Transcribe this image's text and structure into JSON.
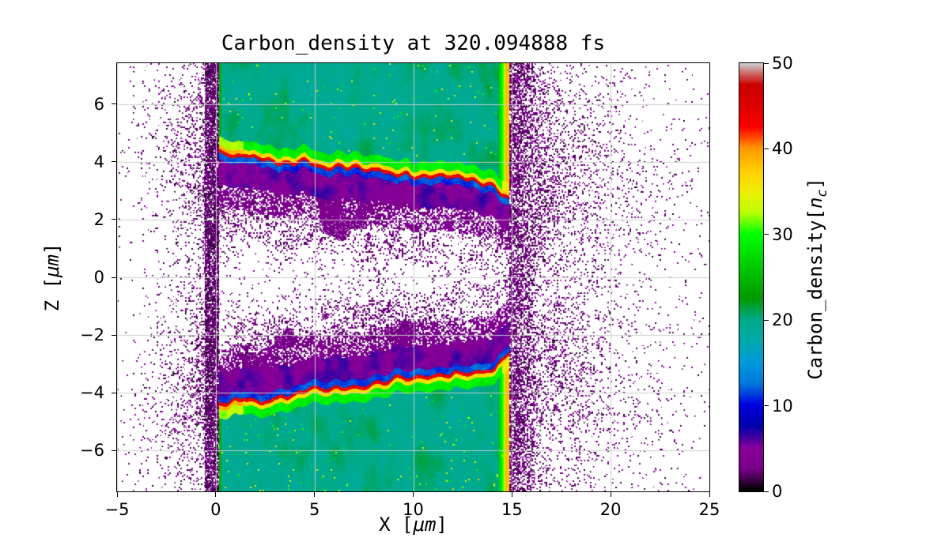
{
  "figure": {
    "title": "Carbon_density at 320.094888 fs",
    "xlabel": {
      "prefix": "X [",
      "unit": "μm",
      "suffix": "]"
    },
    "ylabel": {
      "prefix": "Z [",
      "unit": "μm",
      "suffix": "]"
    },
    "colorbar": {
      "label_prefix": "Carbon_density[",
      "label_var": "n",
      "label_sub": "c",
      "label_suffix": "]",
      "ticks": [
        0,
        10,
        20,
        30,
        40,
        50
      ]
    }
  },
  "chart_data": {
    "type": "heatmap",
    "title": "Carbon_density at 320.094888 fs",
    "time_fs": 320.094888,
    "xlabel": "X [μm]",
    "ylabel": "Z [μm]",
    "colorbar_label": "Carbon_density[n_c]",
    "xlim": [
      -5,
      25
    ],
    "zlim": [
      -7.42,
      7.42
    ],
    "xticks": [
      -5,
      0,
      5,
      10,
      15,
      20,
      25
    ],
    "zticks": [
      -6,
      -4,
      -2,
      0,
      2,
      4,
      6
    ],
    "vmin": 0,
    "vmax": 50,
    "grid": true,
    "colormap": "nipy_spectral",
    "colormap_stops": [
      [
        0.0,
        0,
        0,
        0
      ],
      [
        0.05,
        119,
        0,
        136
      ],
      [
        0.1,
        136,
        0,
        153
      ],
      [
        0.15,
        0,
        0,
        170
      ],
      [
        0.2,
        0,
        0,
        221
      ],
      [
        0.25,
        0,
        119,
        221
      ],
      [
        0.3,
        0,
        153,
        221
      ],
      [
        0.35,
        0,
        170,
        170
      ],
      [
        0.4,
        0,
        170,
        136
      ],
      [
        0.45,
        0,
        153,
        0
      ],
      [
        0.5,
        0,
        187,
        0
      ],
      [
        0.55,
        0,
        221,
        0
      ],
      [
        0.6,
        0,
        255,
        0
      ],
      [
        0.65,
        187,
        255,
        0
      ],
      [
        0.7,
        238,
        238,
        0
      ],
      [
        0.75,
        255,
        204,
        0
      ],
      [
        0.8,
        255,
        153,
        0
      ],
      [
        0.85,
        255,
        0,
        0
      ],
      [
        0.9,
        221,
        0,
        0
      ],
      [
        0.95,
        204,
        0,
        0
      ],
      [
        1.0,
        204,
        204,
        204
      ]
    ],
    "structure": {
      "slab_x_range": [
        0.15,
        14.85
      ],
      "top_slab": {
        "z_extent": [
          3.1,
          7.42
        ],
        "boundary_z_start": 4.32,
        "boundary_z_end": 3.12,
        "interior_density": 20
      },
      "bottom_slab": {
        "z_extent": [
          -7.42,
          -3.1
        ],
        "boundary_z_start": -4.38,
        "boundary_z_end": -3.12,
        "interior_density": 20
      },
      "boundary_peak_density": 46,
      "edge_sheath_density": 38,
      "background": "sparse low-density (0-6 nc) expanding plasma speckle around two dense slabs; dark band near x=0 and x=15-16"
    }
  }
}
